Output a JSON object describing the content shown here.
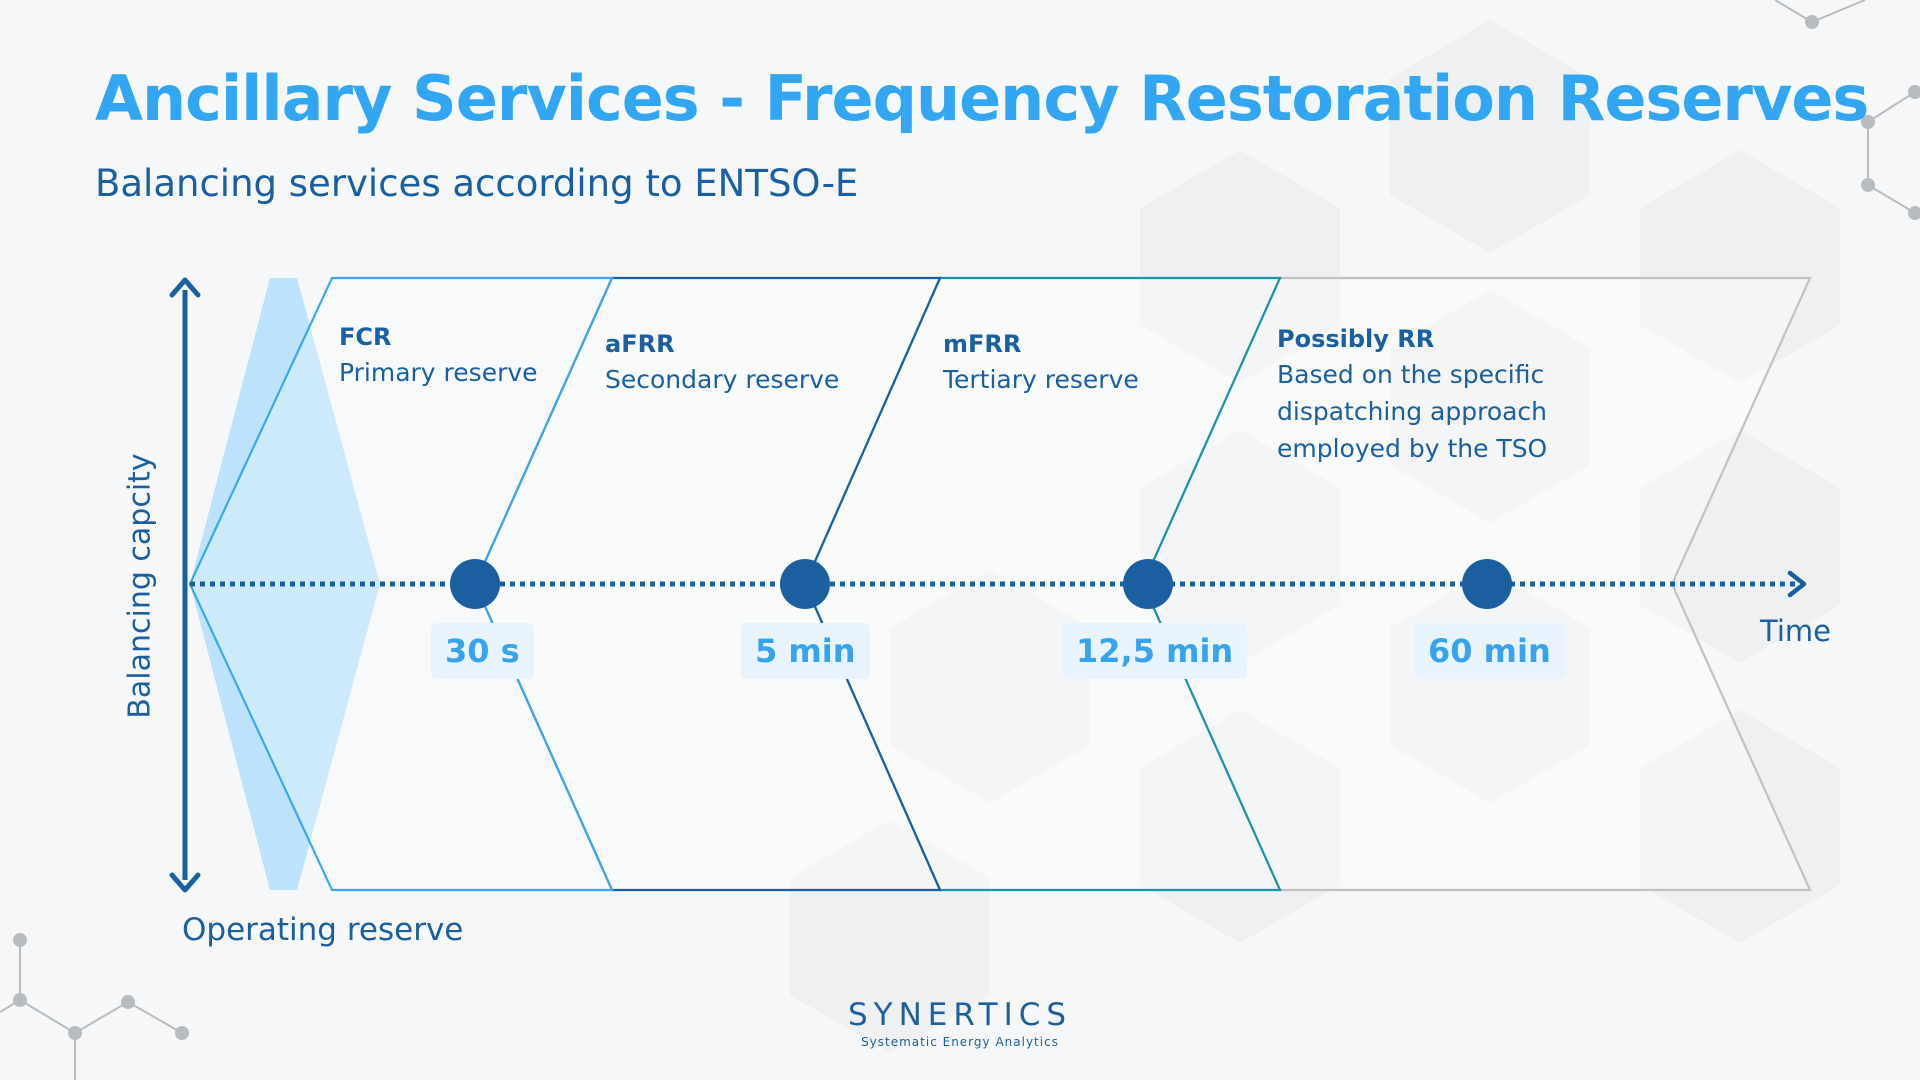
{
  "header": {
    "title": "Ancillary Services - Frequency Restoration Reserves",
    "subtitle": "Balancing services according to ENTSO-E"
  },
  "axes": {
    "y_label": "Balancing capcity",
    "origin_label": "Operating reserve",
    "x_label": "Time"
  },
  "phases": [
    {
      "name": "FCR",
      "description": [
        "Primary reserve"
      ],
      "color": "#3aa7ee"
    },
    {
      "name": "aFRR",
      "description": [
        "Secondary reserve"
      ],
      "color": "#1b5fa1"
    },
    {
      "name": "mFRR",
      "description": [
        "Tertiary reserve"
      ],
      "color": "#1896a8"
    },
    {
      "name": "Possibly RR",
      "description": [
        "Based on the specific",
        "dispatching approach",
        "employed by the TSO"
      ],
      "color": "#c4c4c4"
    }
  ],
  "milestones": [
    {
      "label": "30 s"
    },
    {
      "label": "5 min"
    },
    {
      "label": "12,5 min"
    },
    {
      "label": "60 min"
    }
  ],
  "colors": {
    "title": "#33a6f3",
    "text": "#1b5fa1",
    "axis": "#1b5fa1",
    "fcr_fill": "#bde2fb",
    "milestone_dot": "#1b5fa1"
  },
  "logo": {
    "brand": "SYNERTICS",
    "tagline": "Systematic Energy Analytics"
  }
}
